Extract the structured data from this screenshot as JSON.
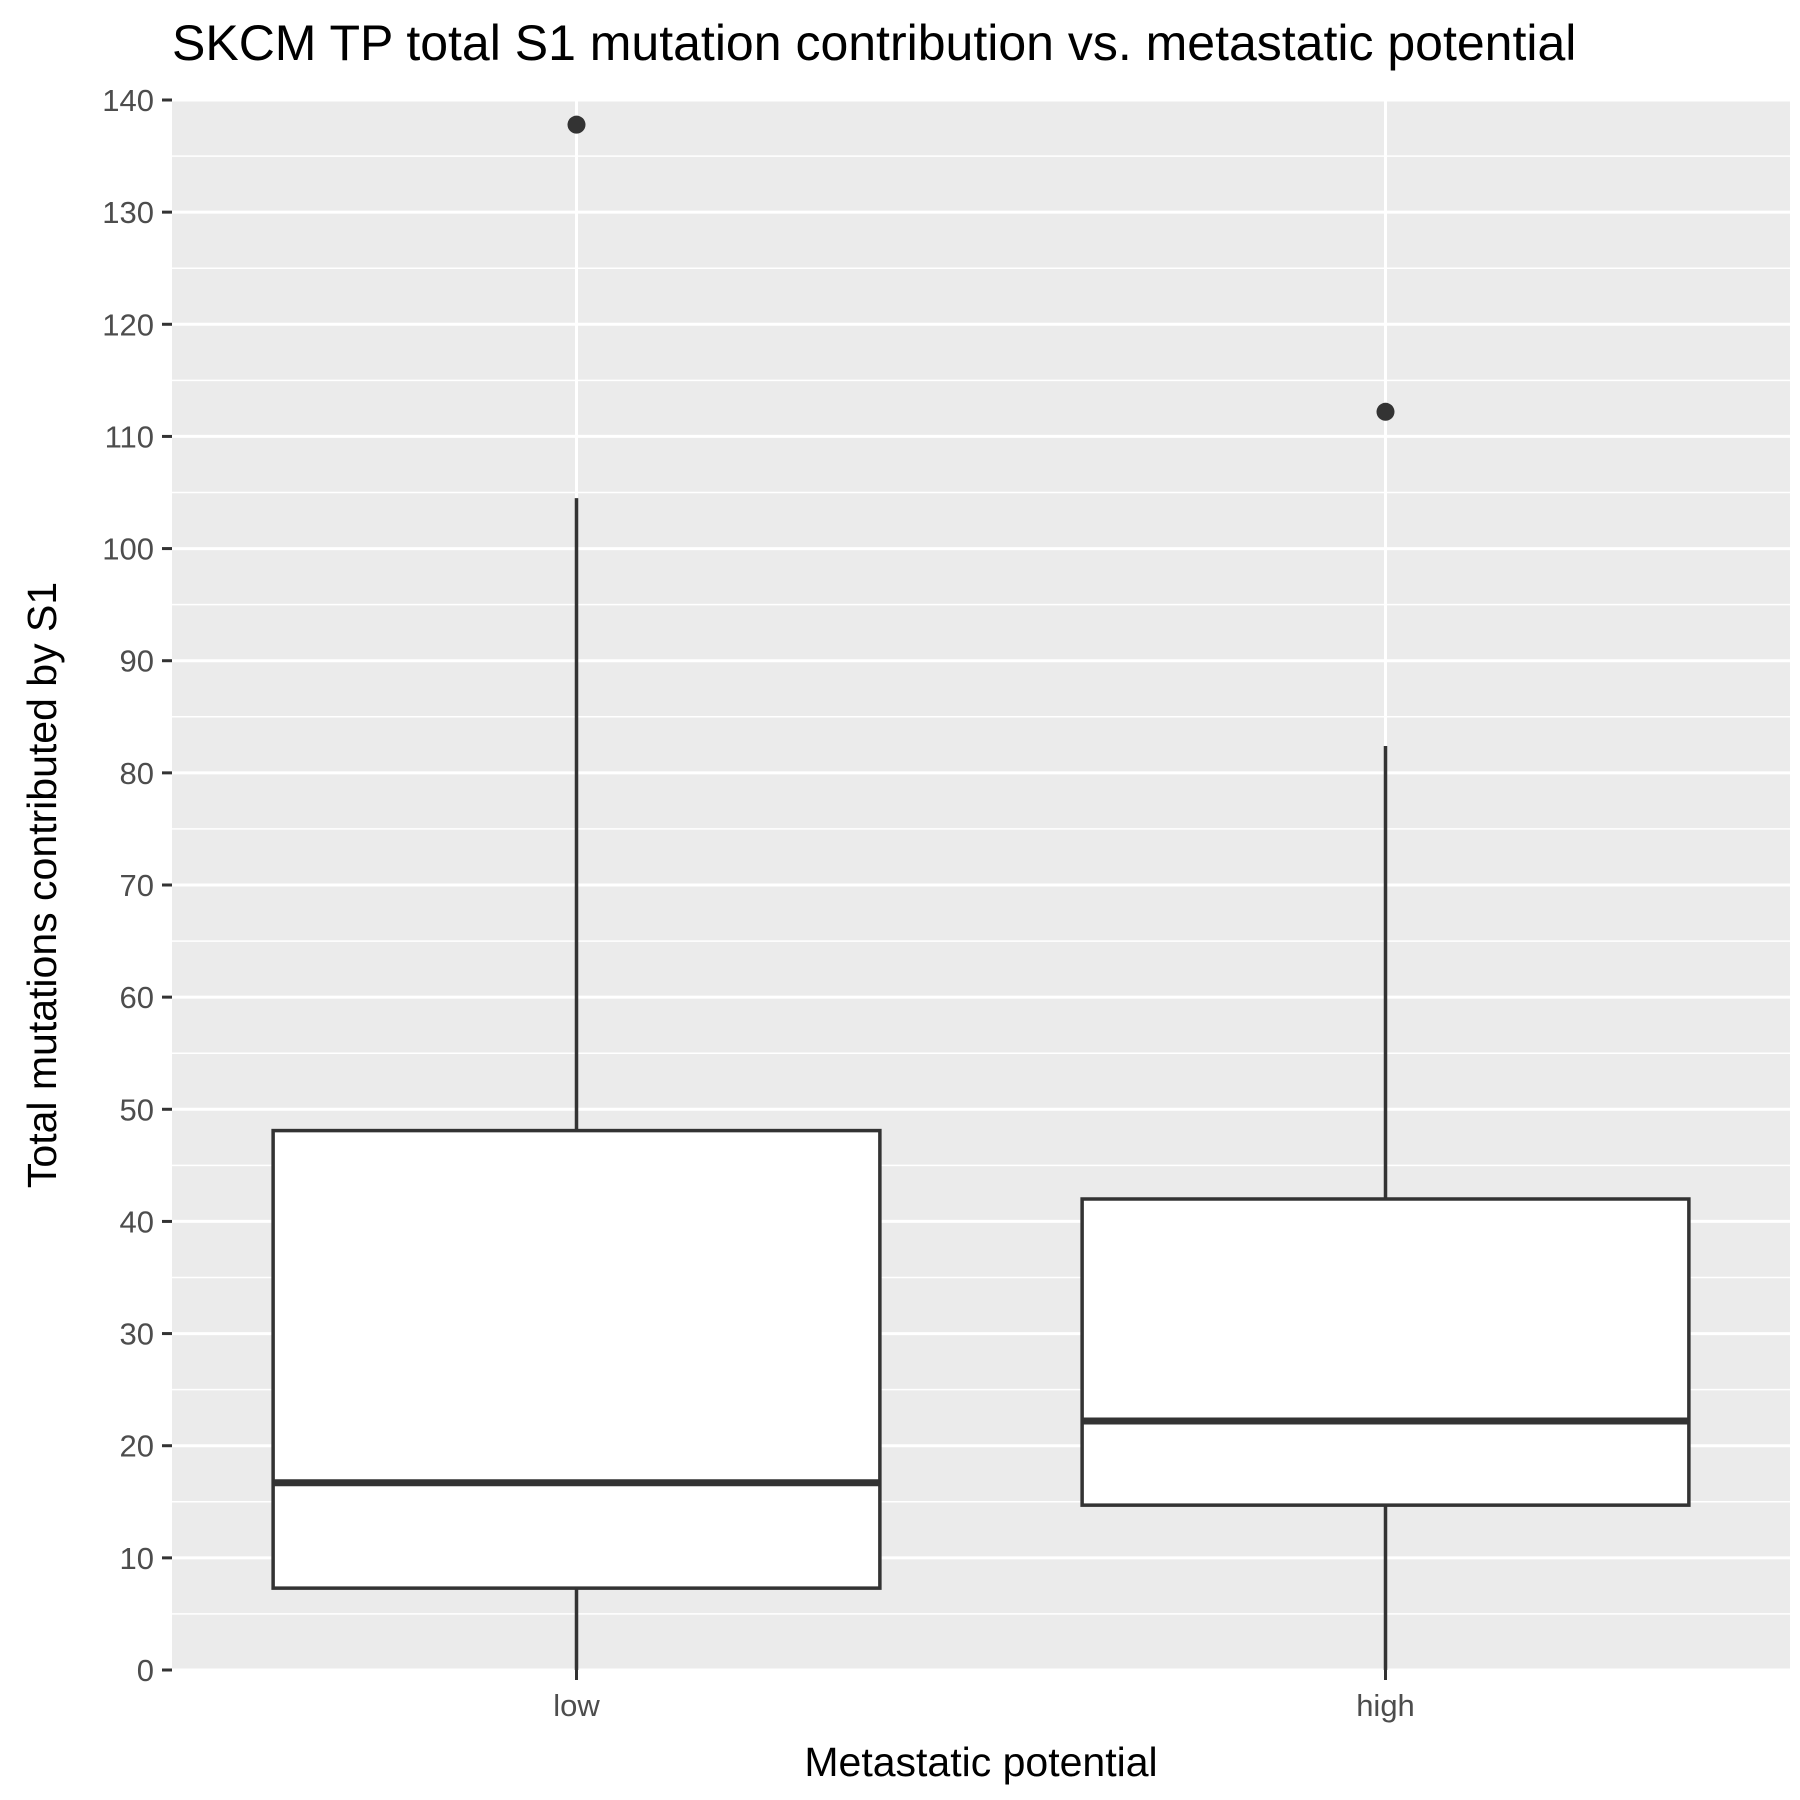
{
  "chart_data": {
    "type": "boxplot",
    "title": "SKCM TP total S1 mutation contribution vs. metastatic potential",
    "xlabel": "Metastatic potential",
    "ylabel": "Total mutations contributed by S1",
    "ylim": [
      0,
      140
    ],
    "y_ticks": [
      0,
      10,
      20,
      30,
      40,
      50,
      60,
      70,
      80,
      90,
      100,
      110,
      120,
      130,
      140
    ],
    "categories": [
      "low",
      "high"
    ],
    "boxes": [
      {
        "category": "low",
        "whisker_low": 0,
        "q1": 7.3,
        "median": 16.7,
        "q3": 48.1,
        "whisker_high": 104.5,
        "outliers": [
          137.8
        ]
      },
      {
        "category": "high",
        "whisker_low": 0,
        "q1": 14.7,
        "median": 22.2,
        "q3": 42.0,
        "whisker_high": 82.4,
        "outliers": [
          112.2
        ]
      }
    ],
    "grid": true,
    "legend": "none",
    "colors": {
      "panel_bg": "#ebebeb",
      "grid": "#ffffff",
      "box_fill": "#ffffff",
      "box_line": "#333333",
      "tick_text": "#4d4d4d"
    }
  }
}
